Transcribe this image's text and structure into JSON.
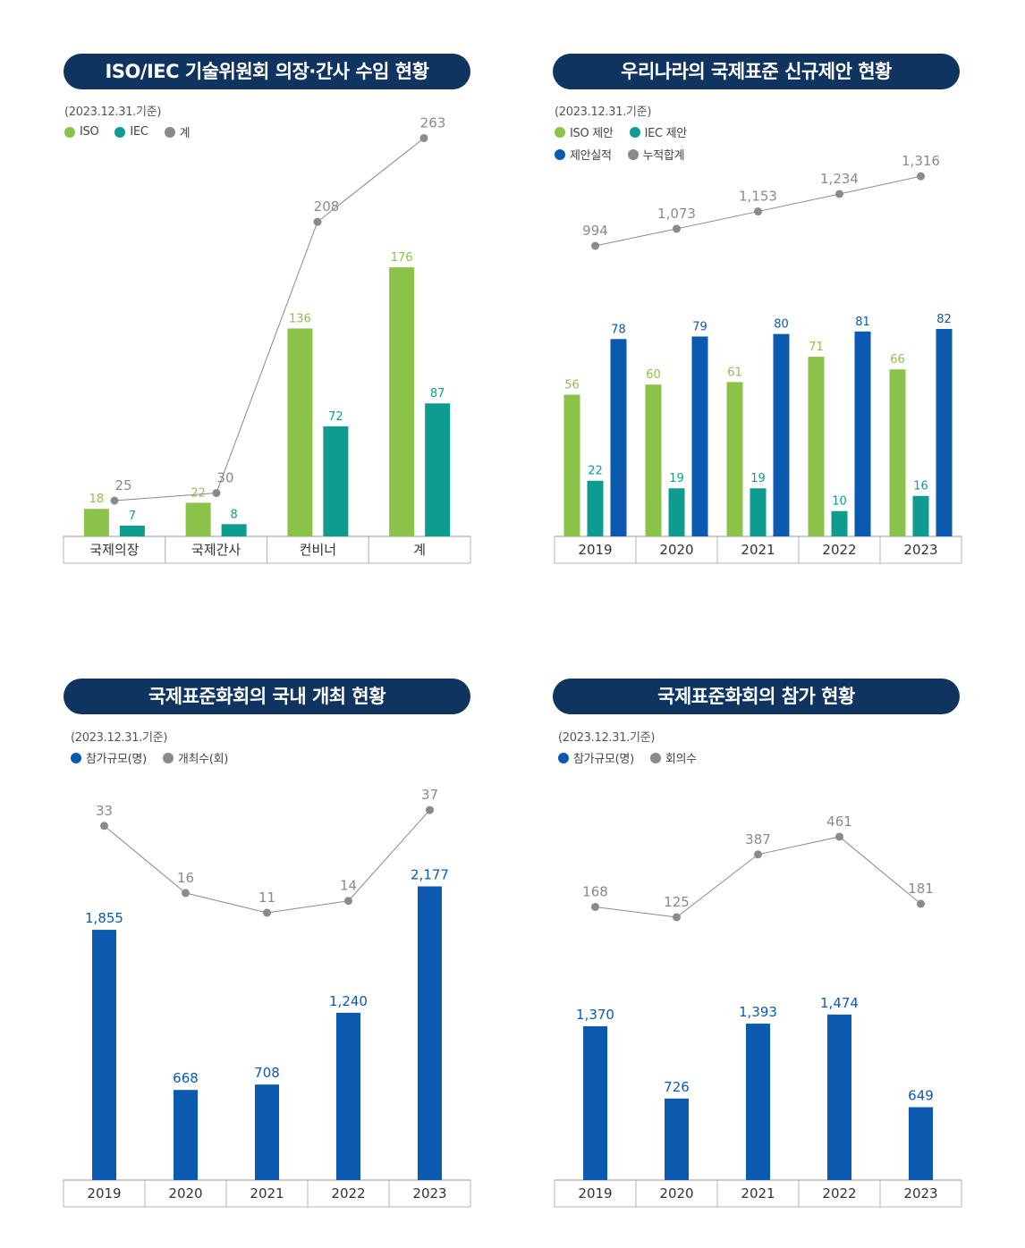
{
  "colors": {
    "title_bg": "#0f3460",
    "iso": "#8bc34a",
    "iec": "#0e9c90",
    "blue": "#0b5ab0",
    "gray": "#8a8a8a"
  },
  "chart_data": [
    {
      "type": "bar",
      "title": "ISO/IEC 기술위원회 의장·간사 수임 현황",
      "subtitle": "(2023.12.31.기준)",
      "categories": [
        "국제의장",
        "국제간사",
        "컨비너",
        "계"
      ],
      "series": [
        {
          "name": "ISO",
          "kind": "bar",
          "color": "#8bc34a",
          "values": [
            18,
            22,
            136,
            176
          ]
        },
        {
          "name": "IEC",
          "kind": "bar",
          "color": "#0e9c90",
          "values": [
            7,
            8,
            72,
            87
          ]
        },
        {
          "name": "계",
          "kind": "line",
          "color": "#8a8a8a",
          "values": [
            25,
            30,
            208,
            263
          ]
        }
      ],
      "legend_position": "top-left"
    },
    {
      "type": "bar",
      "title": "우리나라의 국제표준 신규제안 현황",
      "subtitle": "(2023.12.31.기준)",
      "categories": [
        "2019",
        "2020",
        "2021",
        "2022",
        "2023"
      ],
      "series": [
        {
          "name": "ISO 제안",
          "kind": "bar",
          "color": "#8bc34a",
          "values": [
            56,
            60,
            61,
            71,
            66
          ]
        },
        {
          "name": "IEC 제안",
          "kind": "bar",
          "color": "#0e9c90",
          "values": [
            22,
            19,
            19,
            10,
            16
          ]
        },
        {
          "name": "제안실적",
          "kind": "bar",
          "color": "#0b5ab0",
          "values": [
            78,
            79,
            80,
            81,
            82
          ]
        },
        {
          "name": "누적합계",
          "kind": "line",
          "color": "#8a8a8a",
          "values": [
            994,
            1073,
            1153,
            1234,
            1316
          ],
          "labels": [
            "994",
            "1,073",
            "1,153",
            "1,234",
            "1,316"
          ]
        }
      ],
      "legend_position": "top-left"
    },
    {
      "type": "bar",
      "title": "국제표준화회의 국내 개최 현황",
      "subtitle": "(2023.12.31.기준)",
      "categories": [
        "2019",
        "2020",
        "2021",
        "2022",
        "2023"
      ],
      "series": [
        {
          "name": "참가규모(명)",
          "kind": "bar",
          "color": "#0b5ab0",
          "values": [
            1855,
            668,
            708,
            1240,
            2177
          ],
          "labels": [
            "1,855",
            "668",
            "708",
            "1,240",
            "2,177"
          ]
        },
        {
          "name": "개최수(회)",
          "kind": "line",
          "color": "#8a8a8a",
          "values": [
            33,
            16,
            11,
            14,
            37
          ]
        }
      ],
      "legend_position": "top-left"
    },
    {
      "type": "bar",
      "title": "국제표준화회의 참가 현황",
      "subtitle": "(2023.12.31.기준)",
      "categories": [
        "2019",
        "2020",
        "2021",
        "2022",
        "2023"
      ],
      "series": [
        {
          "name": "참가규모(명)",
          "kind": "bar",
          "color": "#0b5ab0",
          "values": [
            1370,
            726,
            1393,
            1474,
            649
          ],
          "labels": [
            "1,370",
            "726",
            "1,393",
            "1,474",
            "649"
          ]
        },
        {
          "name": "회의수",
          "kind": "line",
          "color": "#8a8a8a",
          "values": [
            168,
            125,
            387,
            461,
            181
          ]
        }
      ],
      "legend_position": "top-left"
    }
  ]
}
